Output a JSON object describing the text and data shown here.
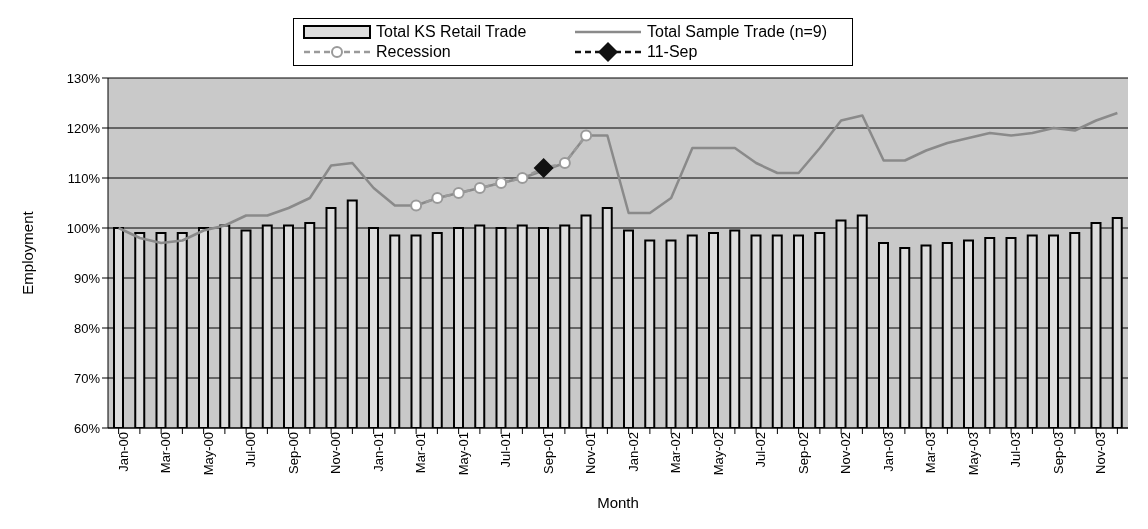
{
  "chart_data": {
    "type": "bar",
    "xlabel": "Month",
    "ylabel": "Employment",
    "categories": [
      "Jan-00",
      null,
      "Mar-00",
      null,
      "May-00",
      null,
      "Jul-00",
      null,
      "Sep-00",
      null,
      "Nov-00",
      null,
      "Jan-01",
      null,
      "Mar-01",
      null,
      "May-01",
      null,
      "Jul-01",
      null,
      "Sep-01",
      null,
      "Nov-01",
      null,
      "Jan-02",
      null,
      "Mar-02",
      null,
      "May-02",
      null,
      "Jul-02",
      null,
      "Sep-02",
      null,
      "Nov-02",
      null,
      "Jan-03",
      null,
      "Mar-03",
      null,
      "May-03",
      null,
      "Jul-03",
      null,
      "Sep-03",
      null,
      "Nov-03",
      null
    ],
    "series": [
      {
        "name": "Total KS Retail Trade",
        "color": "#dddddd",
        "values": [
          100,
          99,
          99,
          99,
          100,
          100.5,
          99.5,
          100.5,
          100.5,
          101,
          104,
          105.5,
          100,
          98.5,
          98.5,
          99,
          100,
          100.5,
          100,
          100.5,
          100,
          100.5,
          102.5,
          104,
          99.5,
          97.5,
          97.5,
          98.5,
          99,
          99.5,
          98.5,
          98.5,
          98.5,
          99,
          101.5,
          102.5,
          97,
          96,
          96.5,
          97,
          97.5,
          98,
          98,
          98.5,
          98.5,
          99,
          101,
          102
        ]
      },
      {
        "name": "Total Sample Trade (n=9)",
        "type": "line",
        "color": "#8a8a8a",
        "marker": "none",
        "line_style": "solid",
        "values": [
          100,
          98,
          97,
          97.5,
          99.5,
          100.5,
          102.5,
          102.5,
          104,
          106,
          112.5,
          113,
          108,
          104.5,
          104.5,
          106,
          107,
          108,
          109,
          110,
          null,
          113,
          118.5,
          118.5,
          103,
          103,
          106,
          116,
          116,
          116,
          113,
          111,
          111,
          116,
          121.5,
          122.5,
          113.5,
          113.5,
          115.5,
          117,
          118,
          119,
          118.5,
          119,
          120,
          119.5,
          121.5,
          123
        ]
      },
      {
        "name": "Recession",
        "type": "line",
        "color": "#9a9a9a",
        "marker": "circle",
        "line_style": "dashed",
        "values": [
          null,
          null,
          null,
          null,
          null,
          null,
          null,
          null,
          null,
          null,
          null,
          null,
          null,
          null,
          104.5,
          106,
          107,
          108,
          109,
          110,
          112,
          113,
          118.5,
          null,
          null,
          null,
          null,
          null,
          null,
          null,
          null,
          null,
          null,
          null,
          null,
          null,
          null,
          null,
          null,
          null,
          null,
          null,
          null,
          null,
          null,
          null,
          null,
          null
        ]
      },
      {
        "name": "11-Sep",
        "type": "line",
        "color": "#111111",
        "marker": "diamond",
        "line_style": "dashed",
        "values": [
          null,
          null,
          null,
          null,
          null,
          null,
          null,
          null,
          null,
          null,
          null,
          null,
          null,
          null,
          null,
          null,
          null,
          null,
          null,
          null,
          112,
          null,
          null,
          null,
          null,
          null,
          null,
          null,
          null,
          null,
          null,
          null,
          null,
          null,
          null,
          null,
          null,
          null,
          null,
          null,
          null,
          null,
          null,
          null,
          null,
          null,
          null,
          null
        ]
      }
    ],
    "ylim": [
      60,
      130
    ],
    "yticks": [
      {
        "value": 60,
        "label": "60%"
      },
      {
        "value": 70,
        "label": "70%"
      },
      {
        "value": 80,
        "label": "80%"
      },
      {
        "value": 90,
        "label": "90%"
      },
      {
        "value": 100,
        "label": "100%"
      },
      {
        "value": 110,
        "label": "110%"
      },
      {
        "value": 120,
        "label": "120%"
      },
      {
        "value": 130,
        "label": "130%"
      }
    ],
    "grid": "y",
    "legend": "top"
  }
}
